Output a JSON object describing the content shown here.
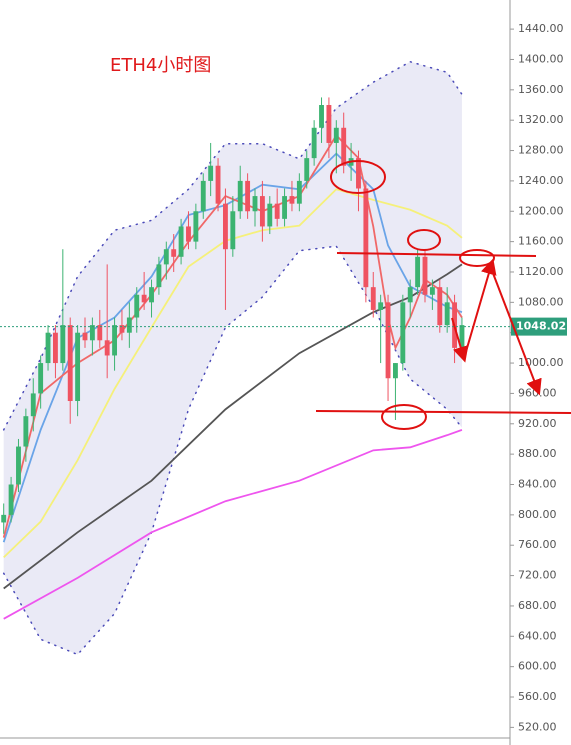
{
  "chart_data": {
    "type": "candlestick",
    "title": "ETH4小时图",
    "xlim": [
      -0.5,
      68.5
    ],
    "ylim": [
      506,
      1452
    ],
    "yticks": [
      {
        "value": 520,
        "label": "520.00"
      },
      {
        "value": 560,
        "label": "560.00"
      },
      {
        "value": 600,
        "label": "600.00"
      },
      {
        "value": 640,
        "label": "640.00"
      },
      {
        "value": 680,
        "label": "680.00"
      },
      {
        "value": 720,
        "label": "720.00"
      },
      {
        "value": 760,
        "label": "760.00"
      },
      {
        "value": 800,
        "label": "800.00"
      },
      {
        "value": 840,
        "label": "840.00"
      },
      {
        "value": 880,
        "label": "880.00"
      },
      {
        "value": 920,
        "label": "920.00"
      },
      {
        "value": 960,
        "label": "960.00"
      },
      {
        "value": 1000,
        "label": "1000.00"
      },
      {
        "value": 1040,
        "label": "1040.00"
      },
      {
        "value": 1080,
        "label": "1080.00"
      },
      {
        "value": 1120,
        "label": "1120.00"
      },
      {
        "value": 1160,
        "label": "1160.00"
      },
      {
        "value": 1200,
        "label": "1200.00"
      },
      {
        "value": 1240,
        "label": "1240.00"
      },
      {
        "value": 1280,
        "label": "1280.00"
      },
      {
        "value": 1320,
        "label": "1320.00"
      },
      {
        "value": 1360,
        "label": "1360.00"
      },
      {
        "value": 1400,
        "label": "1400.00"
      },
      {
        "value": 1440,
        "label": "1440.00"
      }
    ],
    "up_color": "#3cb371",
    "down_color": "#ef5361",
    "open": [
      790,
      800,
      840,
      890,
      930,
      960,
      1000,
      1040,
      1000,
      1050,
      950,
      1040,
      1030,
      1050,
      1030,
      1010,
      1050,
      1040,
      1060,
      1090,
      1080,
      1100,
      1130,
      1150,
      1140,
      1180,
      1160,
      1200,
      1240,
      1260,
      1210,
      1150,
      1200,
      1240,
      1200,
      1220,
      1180,
      1210,
      1190,
      1220,
      1210,
      1240,
      1270,
      1310,
      1340,
      1290,
      1310,
      1260,
      1270,
      1230,
      1100,
      1070,
      1080,
      980,
      1000,
      1080,
      1100,
      1140,
      1090,
      1100,
      1050,
      1080,
      1020
    ],
    "high": [
      815,
      850,
      900,
      940,
      980,
      1010,
      1050,
      1050,
      1150,
      1060,
      1050,
      1060,
      1060,
      1070,
      1130,
      1060,
      1070,
      1080,
      1100,
      1120,
      1110,
      1140,
      1160,
      1170,
      1190,
      1200,
      1210,
      1250,
      1290,
      1270,
      1230,
      1220,
      1260,
      1250,
      1230,
      1240,
      1220,
      1230,
      1230,
      1240,
      1250,
      1280,
      1320,
      1350,
      1350,
      1320,
      1330,
      1290,
      1280,
      1240,
      1120,
      1090,
      1090,
      1000,
      1090,
      1110,
      1150,
      1150,
      1110,
      1110,
      1100,
      1090,
      1060
    ],
    "low": [
      775,
      790,
      830,
      870,
      910,
      940,
      990,
      980,
      990,
      920,
      930,
      1020,
      1010,
      1020,
      980,
      990,
      1030,
      1020,
      1040,
      1070,
      1060,
      1090,
      1110,
      1120,
      1130,
      1150,
      1150,
      1190,
      1220,
      1200,
      1070,
      1140,
      1190,
      1190,
      1180,
      1160,
      1170,
      1180,
      1180,
      1200,
      1200,
      1230,
      1260,
      1290,
      1270,
      1250,
      1250,
      1240,
      1200,
      1080,
      1060,
      1000,
      950,
      925,
      990,
      1060,
      1090,
      1080,
      1070,
      1040,
      1040,
      1000,
      1010
    ],
    "close": [
      800,
      840,
      890,
      930,
      960,
      1000,
      1040,
      1000,
      1050,
      950,
      1040,
      1030,
      1050,
      1030,
      1010,
      1050,
      1040,
      1060,
      1090,
      1080,
      1100,
      1130,
      1150,
      1140,
      1180,
      1160,
      1200,
      1240,
      1260,
      1210,
      1150,
      1200,
      1240,
      1200,
      1220,
      1180,
      1210,
      1190,
      1220,
      1210,
      1240,
      1270,
      1310,
      1340,
      1290,
      1310,
      1260,
      1270,
      1230,
      1100,
      1070,
      1080,
      980,
      1000,
      1080,
      1100,
      1140,
      1090,
      1100,
      1050,
      1080,
      1020,
      1050
    ],
    "last_price": 1048.02,
    "band": {
      "color": "#d8d8ef",
      "dot_color": "#4a4ab8",
      "x": [
        0,
        5,
        10,
        15,
        20,
        25,
        30,
        35,
        40,
        45,
        50,
        55,
        60,
        62
      ],
      "upper": [
        912,
        1006,
        1114,
        1175,
        1188,
        1229,
        1289,
        1289,
        1269,
        1336,
        1370,
        1397,
        1383,
        1354
      ],
      "lower": [
        723,
        636,
        616,
        670,
        777,
        939,
        1047,
        1087,
        1148,
        1154,
        1074,
        979,
        939,
        915
      ]
    },
    "lines": [
      {
        "color": "#555555",
        "x": [
          0,
          10,
          20,
          30,
          40,
          50,
          55,
          60,
          62
        ],
        "values": [
          703,
          777,
          845,
          939,
          1013,
          1067,
          1087,
          1117,
          1130
        ]
      },
      {
        "color": "#ee55ee",
        "x": [
          0,
          10,
          20,
          30,
          40,
          50,
          55,
          60,
          62
        ],
        "values": [
          663,
          717,
          777,
          818,
          845,
          885,
          889,
          905,
          912
        ]
      },
      {
        "color": "#f5f07a",
        "x": [
          0,
          5,
          10,
          15,
          20,
          25,
          30,
          35,
          40,
          45,
          50,
          55,
          60,
          62
        ],
        "values": [
          744,
          791,
          872,
          966,
          1047,
          1127,
          1161,
          1175,
          1181,
          1229,
          1215,
          1202,
          1181,
          1165
        ]
      },
      {
        "color": "#6aa4e8",
        "x": [
          0,
          5,
          10,
          15,
          20,
          25,
          30,
          35,
          40,
          45,
          50,
          52,
          55,
          60,
          62
        ],
        "values": [
          764,
          912,
          1033,
          1060,
          1114,
          1195,
          1208,
          1235,
          1229,
          1276,
          1229,
          1155,
          1101,
          1074,
          1067
        ]
      },
      {
        "color": "#f06868",
        "x": [
          0,
          5,
          10,
          15,
          20,
          25,
          30,
          35,
          40,
          45,
          48,
          50,
          52,
          53,
          55,
          57,
          60,
          62
        ],
        "values": [
          770,
          960,
          1000,
          1030,
          1090,
          1160,
          1220,
          1200,
          1220,
          1300,
          1270,
          1180,
          1060,
          1020,
          1060,
          1110,
          1090,
          1060
        ]
      }
    ]
  }
}
